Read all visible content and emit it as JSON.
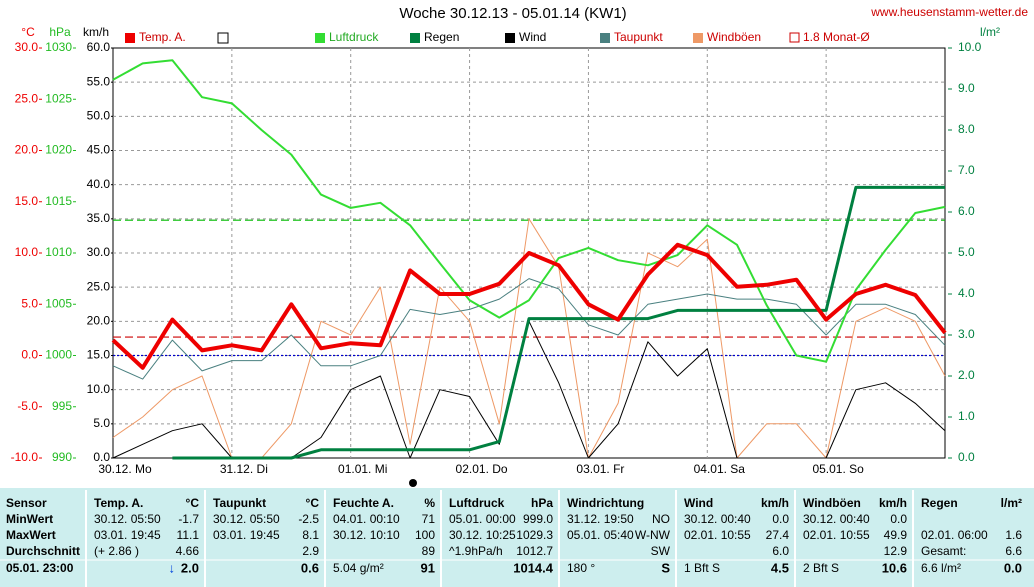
{
  "title": "Woche 30.12.13 - 05.01.14 (KW1)",
  "site": "www.heusenstamm-wetter.de",
  "chart_data": {
    "type": "line",
    "axis_units": {
      "y3": "°C",
      "y4": "hPa",
      "y": "km/h",
      "y2": "l/m²"
    },
    "categories": [
      "30.12. Mo",
      null,
      null,
      null,
      "31.12. Di",
      null,
      null,
      null,
      "01.01. Mi",
      null,
      null,
      null,
      "02.01. Do",
      null,
      null,
      null,
      "03.01. Fr",
      null,
      null,
      null,
      "04.01. Sa",
      null,
      null,
      null,
      "05.01. So",
      null,
      null,
      null,
      null
    ],
    "ylim": [
      0,
      60
    ],
    "yticks": [
      {
        "value": 0,
        "label": "0.0"
      },
      {
        "value": 5,
        "label": "5.0"
      },
      {
        "value": 10,
        "label": "10.0"
      },
      {
        "value": 15,
        "label": "15.0"
      },
      {
        "value": 20,
        "label": "20.0"
      },
      {
        "value": 25,
        "label": "25.0"
      },
      {
        "value": 30,
        "label": "30.0"
      },
      {
        "value": 35,
        "label": "35.0"
      },
      {
        "value": 40,
        "label": "40.0"
      },
      {
        "value": 45,
        "label": "45.0"
      },
      {
        "value": 50,
        "label": "50.0"
      },
      {
        "value": 55,
        "label": "55.0"
      },
      {
        "value": 60,
        "label": "60.0"
      }
    ],
    "y3lim": [
      -10,
      30
    ],
    "y3ticks": [
      {
        "value": -10,
        "label": "-10.0"
      },
      {
        "value": -5,
        "label": "-5.0"
      },
      {
        "value": 0,
        "label": "0.0"
      },
      {
        "value": 5,
        "label": "5.0"
      },
      {
        "value": 10,
        "label": "10.0"
      },
      {
        "value": 15,
        "label": "15.0"
      },
      {
        "value": 20,
        "label": "20.0"
      },
      {
        "value": 25,
        "label": "25.0"
      },
      {
        "value": 30,
        "label": "30.0"
      }
    ],
    "y4lim": [
      990,
      1030
    ],
    "y4ticks": [
      990,
      995,
      1000,
      1005,
      1010,
      1015,
      1020,
      1025,
      1030
    ],
    "y2lim": [
      0,
      10
    ],
    "y2ticks": [
      {
        "value": 0,
        "label": "0.0"
      },
      {
        "value": 1,
        "label": "1.0"
      },
      {
        "value": 2,
        "label": "2.0"
      },
      {
        "value": 3,
        "label": "3.0"
      },
      {
        "value": 4,
        "label": "4.0"
      },
      {
        "value": 5,
        "label": "5.0"
      },
      {
        "value": 6,
        "label": "6.0"
      },
      {
        "value": 7,
        "label": "7.0"
      },
      {
        "value": 8,
        "label": "8.0"
      },
      {
        "value": 9,
        "label": "9.0"
      },
      {
        "value": 10,
        "label": "10.0"
      }
    ],
    "grid": true,
    "series": [
      {
        "name": "Temp. A.",
        "color": "#ee0000",
        "axis": "y3",
        "width": 4,
        "values": [
          1.5,
          -1.2,
          3.5,
          0.5,
          1.0,
          0.5,
          5,
          0.7,
          1.2,
          1.0,
          8.3,
          6,
          6,
          7,
          10,
          8.8,
          5,
          3.5,
          7.9,
          10.8,
          9.8,
          6.7,
          6.9,
          7.4,
          3.5,
          6,
          6.9,
          5.9,
          2.2
        ]
      },
      {
        "name": "Luftdruck",
        "color": "#33dd33",
        "axis": "y4",
        "width": 2,
        "values": [
          1026.9,
          1028.5,
          1028.8,
          1025.2,
          1024.6,
          1022,
          1019.6,
          1015.7,
          1014.4,
          1014.9,
          1012.7,
          1009,
          1005.4,
          1003.7,
          1005.4,
          1009.5,
          1010.5,
          1009.3,
          1008.8,
          1009.8,
          1012.7,
          1010.8,
          1004.9,
          1000,
          999.4,
          1006.4,
          1010.3,
          1013.9,
          1014.5
        ]
      },
      {
        "name": "Regen",
        "color": "#008040",
        "axis": "y2",
        "width": 3,
        "values": [
          null,
          null,
          0,
          0,
          0,
          0,
          0,
          0.2,
          0.2,
          0.2,
          0.2,
          0.2,
          0.2,
          0.4,
          3.4,
          3.4,
          3.4,
          3.4,
          3.4,
          3.6,
          3.6,
          3.6,
          3.6,
          3.6,
          3.6,
          6.6,
          6.6,
          6.6,
          6.6
        ]
      },
      {
        "name": "Wind",
        "color": "#000000",
        "axis": "y",
        "width": 1,
        "values": [
          0,
          2,
          4,
          5,
          0,
          0,
          0,
          3,
          10,
          12,
          0,
          10,
          9,
          2,
          20,
          11,
          0,
          5,
          17,
          12,
          16,
          0,
          0,
          0,
          0,
          10,
          11,
          8,
          4
        ]
      },
      {
        "name": "Taupunkt",
        "color": "#4a8080",
        "axis": "y3",
        "width": 1,
        "values": [
          -1.0,
          -2.3,
          1.5,
          -1.5,
          -0.5,
          -0.5,
          2,
          -1,
          -1,
          0,
          4.5,
          4,
          4.5,
          5.5,
          7.5,
          6.5,
          3,
          2,
          5,
          5.5,
          6,
          5.5,
          5.5,
          5.0,
          2,
          5,
          5,
          4,
          1
        ]
      },
      {
        "name": "Windböen",
        "color": "#ee9966",
        "axis": "y",
        "width": 1,
        "values": [
          3,
          6,
          10,
          12,
          0,
          0,
          5,
          20,
          18,
          25,
          2,
          25,
          20,
          5,
          35,
          28,
          0,
          8,
          30,
          28,
          32,
          0,
          5,
          5,
          0,
          20,
          22,
          20,
          12
        ]
      }
    ],
    "reference_lines": [
      {
        "name": "1.8 Monat-Ø",
        "value": 1.8,
        "axis": "y3",
        "color": "#cc0000"
      },
      {
        "value": 5.8,
        "axis": "y2",
        "color": "#00bb00"
      },
      {
        "value": 0,
        "axis": "y3",
        "color": "#0000cc"
      }
    ]
  },
  "stats": {
    "row_labels": [
      "Sensor",
      "MinWert",
      "MaxWert",
      "Durchschnitt",
      "05.01. 23:00"
    ],
    "columns": [
      {
        "name": "Temp. A.",
        "unit": "°C",
        "min": [
          "30.12.  05:50",
          "-1.7"
        ],
        "max": [
          "03.01.  19:45",
          "11.1"
        ],
        "avg": [
          "(+ 2.86 )",
          "4.66"
        ],
        "trend": "↓",
        "now": [
          "2.0"
        ]
      },
      {
        "name": "Taupunkt",
        "unit": "°C",
        "min": [
          "30.12.  05:50",
          "-2.5"
        ],
        "max": [
          "03.01.  19:45",
          "8.1"
        ],
        "avg": [
          "2.9"
        ],
        "now": [
          "0.6"
        ]
      },
      {
        "name": "Feuchte A.",
        "unit": "%",
        "min": [
          "04.01.  00:10",
          "71"
        ],
        "max": [
          "30.12.  10:10",
          "100"
        ],
        "avg": [
          "89"
        ],
        "now": [
          "5.04 g/m²",
          "91"
        ]
      },
      {
        "name": "Luftdruck",
        "unit": "hPa",
        "min": [
          "05.01.  00:00",
          "999.0"
        ],
        "max": [
          "30.12.  10:25",
          "1029.3"
        ],
        "avg": [
          "^1.9hPa/h",
          "1012.7"
        ],
        "now": [
          "1014.4"
        ]
      },
      {
        "name": "Windrichtung",
        "min": [
          "31.12.  19:50",
          "NO"
        ],
        "max": [
          "05.01.  05:40",
          "W-NW"
        ],
        "avg": [
          "SW"
        ],
        "now": [
          "180 °",
          "S"
        ]
      },
      {
        "name": "Wind",
        "unit": "km/h",
        "min": [
          "30.12.  00:40",
          "0.0"
        ],
        "max": [
          "02.01.  10:55",
          "27.4"
        ],
        "avg": [
          "6.0"
        ],
        "now": [
          "1 Bft S",
          "4.5"
        ]
      },
      {
        "name": "Windböen",
        "unit": "km/h",
        "min": [
          "30.12.  00:40",
          "0.0"
        ],
        "max": [
          "02.01.  10:55",
          "49.9"
        ],
        "avg": [
          "12.9"
        ],
        "now": [
          "2 Bft S",
          "10.6"
        ]
      },
      {
        "name": "Regen",
        "unit": "l/m²",
        "max": [
          "02.01.  06:00",
          "1.6"
        ],
        "avg": [
          "Gesamt:",
          "6.6"
        ],
        "now": [
          "6.6 l/m²",
          "0.0"
        ]
      }
    ]
  }
}
